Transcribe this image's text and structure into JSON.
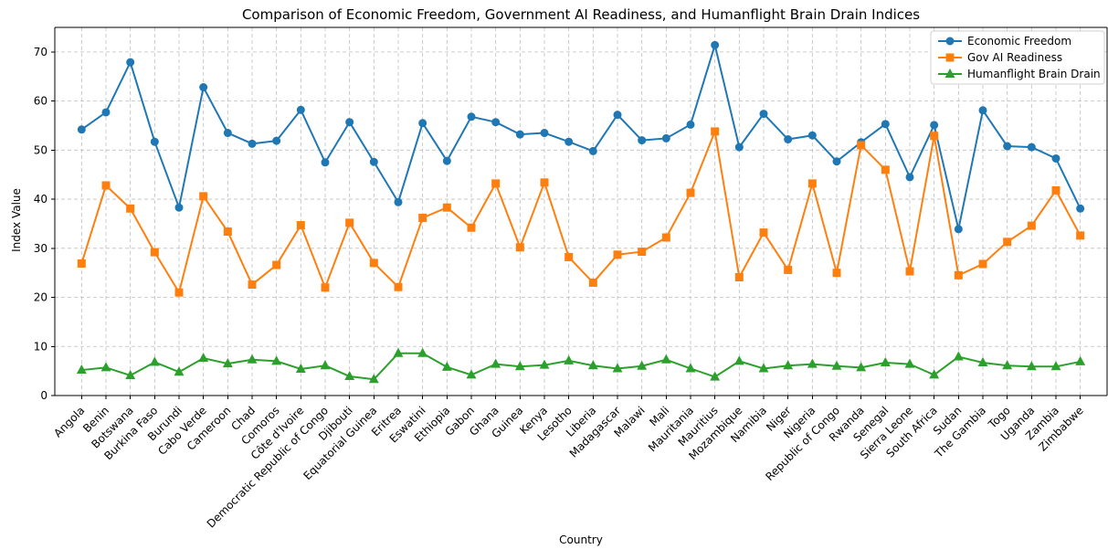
{
  "chart_data": {
    "type": "line",
    "title": "Comparison of Economic Freedom, Government AI Readiness, and Humanflight Brain Drain Indices",
    "xlabel": "Country",
    "ylabel": "Index Value",
    "ylim": [
      0,
      75
    ],
    "yticks": [
      0,
      10,
      20,
      30,
      40,
      50,
      60,
      70
    ],
    "grid": true,
    "legend_position": "top-right",
    "categories": [
      "Angola",
      "Benin",
      "Botswana",
      "Burkina Faso",
      "Burundi",
      "Cabo Verde",
      "Cameroon",
      "Chad",
      "Comoros",
      "Côte d'Ivoire",
      "Democratic Republic of Congo",
      "Djibouti",
      "Equatorial Guinea",
      "Eritrea",
      "Eswatini",
      "Ethiopia",
      "Gabon",
      "Ghana",
      "Guinea",
      "Kenya",
      "Lesotho",
      "Liberia",
      "Madagascar",
      "Malawi",
      "Mali",
      "Mauritania",
      "Mauritius",
      "Mozambique",
      "Namibia",
      "Niger",
      "Nigeria",
      "Republic of Congo",
      "Rwanda",
      "Senegal",
      "Sierra Leone",
      "South Africa",
      "Sudan",
      "The Gambia",
      "Togo",
      "Uganda",
      "Zambia",
      "Zimbabwe"
    ],
    "series": [
      {
        "name": "Economic Freedom",
        "color": "#1f77b4",
        "marker": "circle",
        "values": [
          54.2,
          57.7,
          67.9,
          51.7,
          38.3,
          62.8,
          53.5,
          51.3,
          51.9,
          58.2,
          47.5,
          55.7,
          47.6,
          39.4,
          55.5,
          47.8,
          56.8,
          55.7,
          53.2,
          53.5,
          51.7,
          49.8,
          57.2,
          52.0,
          52.4,
          55.2,
          71.4,
          50.6,
          57.4,
          52.2,
          53.0,
          47.7,
          51.6,
          55.3,
          44.5,
          55.1,
          33.9,
          58.1,
          50.8,
          50.6,
          48.3,
          38.1
        ]
      },
      {
        "name": "Gov AI Readiness",
        "color": "#ff7f0e",
        "marker": "square",
        "values": [
          26.9,
          42.8,
          38.1,
          29.2,
          21.0,
          40.6,
          33.4,
          22.6,
          26.6,
          34.7,
          22.0,
          35.2,
          27.0,
          22.1,
          36.2,
          38.3,
          34.2,
          43.2,
          30.2,
          43.4,
          28.2,
          23.0,
          28.7,
          29.3,
          32.2,
          41.3,
          53.8,
          24.1,
          33.2,
          25.6,
          43.2,
          25.0,
          51.0,
          46.0,
          25.3,
          52.9,
          24.5,
          26.8,
          31.3,
          34.6,
          41.8,
          32.6
        ]
      },
      {
        "name": "Humanflight Brain Drain",
        "color": "#2ca02c",
        "marker": "triangle",
        "values": [
          5.2,
          5.7,
          4.1,
          6.8,
          4.8,
          7.6,
          6.5,
          7.3,
          7.0,
          5.4,
          6.1,
          3.9,
          3.3,
          8.6,
          8.6,
          5.8,
          4.2,
          6.4,
          5.9,
          6.2,
          7.1,
          6.1,
          5.5,
          6.0,
          7.3,
          5.5,
          3.8,
          7.0,
          5.5,
          6.1,
          6.4,
          6.0,
          5.7,
          6.7,
          6.4,
          4.2,
          7.9,
          6.7,
          6.1,
          5.9,
          5.9,
          6.9
        ]
      }
    ]
  }
}
